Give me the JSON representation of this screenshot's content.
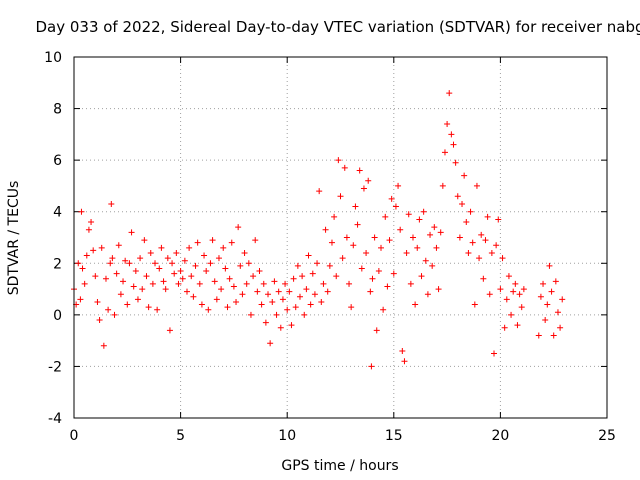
{
  "chart_data": {
    "type": "scatter",
    "title": "Day 033 of 2022, Sidereal Day-to-day VTEC variation (SDTVAR) for receiver nabg",
    "xlabel": "GPS time / hours",
    "ylabel": "SDTVAR / TECUs",
    "xlim": [
      0,
      25
    ],
    "ylim": [
      -4,
      10
    ],
    "xticks": [
      "0",
      "5",
      "10",
      "15",
      "20",
      "25"
    ],
    "yticks": [
      "-4",
      "-2",
      "0",
      "2",
      "4",
      "6",
      "8",
      "10"
    ],
    "grid": true,
    "marker": "+",
    "color": "#ff0000",
    "series": [
      {
        "name": "SDTVAR",
        "points": [
          [
            0.0,
            1.0
          ],
          [
            0.1,
            0.4
          ],
          [
            0.2,
            2.0
          ],
          [
            0.3,
            0.6
          ],
          [
            0.35,
            4.0
          ],
          [
            0.4,
            1.8
          ],
          [
            0.5,
            1.2
          ],
          [
            0.6,
            2.3
          ],
          [
            0.7,
            3.3
          ],
          [
            0.8,
            3.6
          ],
          [
            0.9,
            2.5
          ],
          [
            1.0,
            1.5
          ],
          [
            1.1,
            0.5
          ],
          [
            1.2,
            -0.2
          ],
          [
            1.3,
            2.6
          ],
          [
            1.4,
            -1.2
          ],
          [
            1.5,
            1.4
          ],
          [
            1.6,
            0.2
          ],
          [
            1.7,
            2.0
          ],
          [
            1.75,
            4.3
          ],
          [
            1.8,
            2.2
          ],
          [
            1.9,
            0.0
          ],
          [
            2.0,
            1.6
          ],
          [
            2.1,
            2.7
          ],
          [
            2.2,
            0.8
          ],
          [
            2.3,
            1.3
          ],
          [
            2.4,
            2.1
          ],
          [
            2.5,
            0.4
          ],
          [
            2.6,
            2.0
          ],
          [
            2.7,
            3.2
          ],
          [
            2.8,
            1.1
          ],
          [
            2.9,
            1.7
          ],
          [
            3.0,
            0.6
          ],
          [
            3.1,
            2.2
          ],
          [
            3.2,
            1.0
          ],
          [
            3.3,
            2.9
          ],
          [
            3.4,
            1.5
          ],
          [
            3.5,
            0.3
          ],
          [
            3.6,
            2.4
          ],
          [
            3.7,
            1.2
          ],
          [
            3.8,
            2.0
          ],
          [
            3.9,
            0.2
          ],
          [
            4.0,
            1.8
          ],
          [
            4.1,
            2.6
          ],
          [
            4.2,
            1.3
          ],
          [
            4.3,
            1.0
          ],
          [
            4.4,
            2.2
          ],
          [
            4.5,
            -0.6
          ],
          [
            4.6,
            2.0
          ],
          [
            4.7,
            1.6
          ],
          [
            4.8,
            2.4
          ],
          [
            4.9,
            1.2
          ],
          [
            5.0,
            1.7
          ],
          [
            5.1,
            1.4
          ],
          [
            5.2,
            2.1
          ],
          [
            5.3,
            0.9
          ],
          [
            5.4,
            2.6
          ],
          [
            5.5,
            1.5
          ],
          [
            5.6,
            0.7
          ],
          [
            5.7,
            1.9
          ],
          [
            5.8,
            2.8
          ],
          [
            5.9,
            1.2
          ],
          [
            6.0,
            0.4
          ],
          [
            6.1,
            2.3
          ],
          [
            6.2,
            1.7
          ],
          [
            6.3,
            0.2
          ],
          [
            6.4,
            2.0
          ],
          [
            6.5,
            2.9
          ],
          [
            6.6,
            1.3
          ],
          [
            6.7,
            0.6
          ],
          [
            6.8,
            2.2
          ],
          [
            6.9,
            1.0
          ],
          [
            7.0,
            2.6
          ],
          [
            7.1,
            1.8
          ],
          [
            7.2,
            0.3
          ],
          [
            7.3,
            1.4
          ],
          [
            7.4,
            2.8
          ],
          [
            7.5,
            1.1
          ],
          [
            7.6,
            0.5
          ],
          [
            7.7,
            3.4
          ],
          [
            7.8,
            1.9
          ],
          [
            7.9,
            0.8
          ],
          [
            8.0,
            2.4
          ],
          [
            8.1,
            1.2
          ],
          [
            8.2,
            2.0
          ],
          [
            8.3,
            0.0
          ],
          [
            8.4,
            1.5
          ],
          [
            8.5,
            2.9
          ],
          [
            8.6,
            0.9
          ],
          [
            8.7,
            1.7
          ],
          [
            8.8,
            0.4
          ],
          [
            8.9,
            1.2
          ],
          [
            9.0,
            -0.3
          ],
          [
            9.1,
            0.8
          ],
          [
            9.2,
            -1.1
          ],
          [
            9.3,
            0.5
          ],
          [
            9.4,
            1.3
          ],
          [
            9.5,
            0.0
          ],
          [
            9.6,
            0.9
          ],
          [
            9.7,
            -0.5
          ],
          [
            9.8,
            0.6
          ],
          [
            9.9,
            1.2
          ],
          [
            10.0,
            0.2
          ],
          [
            10.1,
            0.9
          ],
          [
            10.2,
            -0.4
          ],
          [
            10.3,
            1.4
          ],
          [
            10.4,
            0.3
          ],
          [
            10.5,
            1.9
          ],
          [
            10.6,
            0.7
          ],
          [
            10.7,
            1.5
          ],
          [
            10.8,
            0.0
          ],
          [
            10.9,
            1.0
          ],
          [
            11.0,
            2.3
          ],
          [
            11.1,
            0.4
          ],
          [
            11.2,
            1.6
          ],
          [
            11.3,
            0.8
          ],
          [
            11.4,
            2.0
          ],
          [
            11.5,
            4.8
          ],
          [
            11.6,
            0.5
          ],
          [
            11.7,
            1.2
          ],
          [
            11.8,
            3.3
          ],
          [
            11.9,
            0.9
          ],
          [
            12.0,
            1.9
          ],
          [
            12.1,
            2.8
          ],
          [
            12.2,
            3.8
          ],
          [
            12.3,
            1.5
          ],
          [
            12.4,
            6.0
          ],
          [
            12.5,
            4.6
          ],
          [
            12.6,
            2.2
          ],
          [
            12.7,
            5.7
          ],
          [
            12.8,
            3.0
          ],
          [
            12.9,
            1.2
          ],
          [
            13.0,
            0.3
          ],
          [
            13.1,
            2.7
          ],
          [
            13.2,
            4.2
          ],
          [
            13.3,
            3.5
          ],
          [
            13.4,
            5.6
          ],
          [
            13.5,
            1.8
          ],
          [
            13.6,
            4.9
          ],
          [
            13.7,
            2.4
          ],
          [
            13.8,
            5.2
          ],
          [
            13.9,
            0.9
          ],
          [
            13.95,
            -2.0
          ],
          [
            14.0,
            1.4
          ],
          [
            14.1,
            3.0
          ],
          [
            14.2,
            -0.6
          ],
          [
            14.3,
            1.7
          ],
          [
            14.4,
            2.6
          ],
          [
            14.5,
            0.2
          ],
          [
            14.6,
            3.8
          ],
          [
            14.7,
            1.1
          ],
          [
            14.8,
            2.9
          ],
          [
            14.9,
            4.5
          ],
          [
            15.0,
            1.6
          ],
          [
            15.1,
            4.2
          ],
          [
            15.2,
            5.0
          ],
          [
            15.3,
            3.3
          ],
          [
            15.4,
            -1.4
          ],
          [
            15.5,
            -1.8
          ],
          [
            15.6,
            2.4
          ],
          [
            15.7,
            3.9
          ],
          [
            15.8,
            1.2
          ],
          [
            15.9,
            3.0
          ],
          [
            16.0,
            0.4
          ],
          [
            16.1,
            2.6
          ],
          [
            16.2,
            3.7
          ],
          [
            16.3,
            1.5
          ],
          [
            16.4,
            4.0
          ],
          [
            16.5,
            2.1
          ],
          [
            16.6,
            0.8
          ],
          [
            16.7,
            3.1
          ],
          [
            16.8,
            1.9
          ],
          [
            16.9,
            3.4
          ],
          [
            17.0,
            2.6
          ],
          [
            17.1,
            1.0
          ],
          [
            17.2,
            3.2
          ],
          [
            17.3,
            5.0
          ],
          [
            17.4,
            6.3
          ],
          [
            17.5,
            7.4
          ],
          [
            17.6,
            8.6
          ],
          [
            17.7,
            7.0
          ],
          [
            17.8,
            6.6
          ],
          [
            17.9,
            5.9
          ],
          [
            18.0,
            4.6
          ],
          [
            18.1,
            3.0
          ],
          [
            18.2,
            4.3
          ],
          [
            18.3,
            5.4
          ],
          [
            18.4,
            3.6
          ],
          [
            18.5,
            2.4
          ],
          [
            18.6,
            4.0
          ],
          [
            18.7,
            2.8
          ],
          [
            18.8,
            0.4
          ],
          [
            18.9,
            5.0
          ],
          [
            19.0,
            2.2
          ],
          [
            19.1,
            3.1
          ],
          [
            19.2,
            1.4
          ],
          [
            19.3,
            2.9
          ],
          [
            19.4,
            3.8
          ],
          [
            19.5,
            0.8
          ],
          [
            19.6,
            2.4
          ],
          [
            19.7,
            -1.5
          ],
          [
            19.8,
            2.7
          ],
          [
            19.9,
            3.7
          ],
          [
            20.0,
            1.0
          ],
          [
            20.1,
            2.2
          ],
          [
            20.2,
            -0.5
          ],
          [
            20.3,
            0.6
          ],
          [
            20.4,
            1.5
          ],
          [
            20.5,
            0.0
          ],
          [
            20.6,
            0.9
          ],
          [
            20.7,
            1.2
          ],
          [
            20.8,
            -0.4
          ],
          [
            20.9,
            0.8
          ],
          [
            21.0,
            0.3
          ],
          [
            21.1,
            1.0
          ],
          [
            21.8,
            -0.8
          ],
          [
            21.9,
            0.7
          ],
          [
            22.0,
            1.2
          ],
          [
            22.1,
            -0.2
          ],
          [
            22.2,
            0.4
          ],
          [
            22.3,
            1.9
          ],
          [
            22.4,
            0.9
          ],
          [
            22.5,
            -0.8
          ],
          [
            22.6,
            1.3
          ],
          [
            22.7,
            0.1
          ],
          [
            22.8,
            -0.5
          ],
          [
            22.9,
            0.6
          ]
        ]
      }
    ]
  }
}
